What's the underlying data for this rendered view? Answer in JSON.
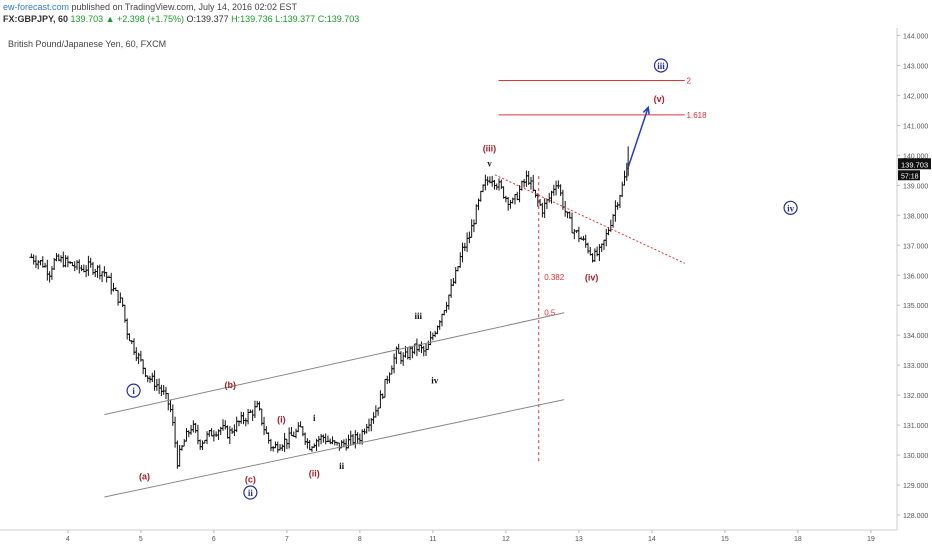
{
  "header": {
    "site": "ew-forecast.com",
    "published": " published on TradingView.com, July 14, 2016 02:02 EST",
    "symbol": "FX:GBPJPY, 60",
    "change": "139.703 ▲ +2.398 (+1.75%)",
    "open": " O:139.377",
    "high": " H:139.736",
    "low": " L:139.377",
    "close": " C:139.703"
  },
  "chart_data": {
    "type": "ohlc",
    "title": "British Pound/Japanese Yen, 60, FXCM",
    "last_price": "139.703",
    "countdown": "57:18",
    "ylim": [
      127.5,
      144.25
    ],
    "y_ticks": [
      "128.000",
      "129.000",
      "130.000",
      "131.000",
      "132.000",
      "133.000",
      "134.000",
      "135.000",
      "136.000",
      "137.000",
      "138.000",
      "139.000",
      "140.000",
      "141.000",
      "142.000",
      "143.000",
      "144.000"
    ],
    "x_ticks": [
      "4",
      "5",
      "6",
      "7",
      "8",
      "11",
      "12",
      "13",
      "14",
      "15",
      "18",
      "19"
    ],
    "colors": {
      "bars": "#111111",
      "channel": "#888888",
      "target_lines": "#e0333a",
      "fib_line": "#e0333a",
      "wave_red": "#a5202a",
      "wave_blue": "#1f2f9a",
      "projection_arrow": "#1f3fbb",
      "price_tag": "#111111"
    },
    "price_path": [
      [
        4,
        136.6
      ],
      [
        4.3,
        136.4
      ],
      [
        4.5,
        136.1
      ],
      [
        4.6,
        136.45
      ],
      [
        4.8,
        136.5
      ],
      [
        5.0,
        136.4
      ],
      [
        5.2,
        136.3
      ],
      [
        5.4,
        136.2
      ],
      [
        5.6,
        136.3
      ],
      [
        5.8,
        136.2
      ],
      [
        6.0,
        136.1
      ],
      [
        6.2,
        135.6
      ],
      [
        6.5,
        135.0
      ],
      [
        6.6,
        134.2
      ],
      [
        6.8,
        133.6
      ],
      [
        7.0,
        133.1
      ],
      [
        7.2,
        132.6
      ],
      [
        7.4,
        132.4
      ],
      [
        7.6,
        132.1
      ],
      [
        7.8,
        131.6
      ],
      [
        7.9,
        130.8
      ],
      [
        8.0,
        129.8
      ],
      [
        8.2,
        130.5
      ],
      [
        8.4,
        131.0
      ],
      [
        8.6,
        130.4
      ],
      [
        8.8,
        130.6
      ],
      [
        9.0,
        130.8
      ],
      [
        9.2,
        130.9
      ],
      [
        9.4,
        130.7
      ],
      [
        9.6,
        131.0
      ],
      [
        9.8,
        131.2
      ],
      [
        10.0,
        131.4
      ],
      [
        10.2,
        131.6
      ],
      [
        10.4,
        130.8
      ],
      [
        10.6,
        130.2
      ],
      [
        10.8,
        130.4
      ],
      [
        11.0,
        130.5
      ],
      [
        11.2,
        130.7
      ],
      [
        11.4,
        130.9
      ],
      [
        11.6,
        130.3
      ],
      [
        11.8,
        130.5
      ],
      [
        12.0,
        130.6
      ],
      [
        12.2,
        130.4
      ],
      [
        12.4,
        130.3
      ],
      [
        12.6,
        130.4
      ],
      [
        12.8,
        130.5
      ],
      [
        13.0,
        130.6
      ],
      [
        13.2,
        131.1
      ],
      [
        13.4,
        131.4
      ],
      [
        13.6,
        132.0
      ],
      [
        13.8,
        132.8
      ],
      [
        14.0,
        133.4
      ],
      [
        14.2,
        133.2
      ],
      [
        14.4,
        133.5
      ],
      [
        14.6,
        133.6
      ],
      [
        14.8,
        133.4
      ],
      [
        15.0,
        134.0
      ],
      [
        15.2,
        134.6
      ],
      [
        15.4,
        135.2
      ],
      [
        15.6,
        135.9
      ],
      [
        15.8,
        136.8
      ],
      [
        16.0,
        137.3
      ],
      [
        16.2,
        138.2
      ],
      [
        16.4,
        139.0
      ],
      [
        16.6,
        139.3
      ],
      [
        16.8,
        139.0
      ],
      [
        17.0,
        138.6
      ],
      [
        17.2,
        138.4
      ],
      [
        17.4,
        138.9
      ],
      [
        17.6,
        139.3
      ],
      [
        17.8,
        138.6
      ],
      [
        18.0,
        138.2
      ],
      [
        18.2,
        138.6
      ],
      [
        18.4,
        139.2
      ],
      [
        18.6,
        138.2
      ],
      [
        18.8,
        137.6
      ],
      [
        19.0,
        137.3
      ],
      [
        19.2,
        137.0
      ],
      [
        19.4,
        136.6
      ],
      [
        19.6,
        136.8
      ],
      [
        19.8,
        137.5
      ],
      [
        20.0,
        138.3
      ],
      [
        20.2,
        139.0
      ],
      [
        20.35,
        139.7
      ]
    ],
    "lines": {
      "channel_upper": [
        [
          6.0,
          131.35
        ],
        [
          18.6,
          134.75
        ]
      ],
      "channel_lower": [
        [
          6.0,
          128.6
        ],
        [
          18.6,
          131.85
        ]
      ],
      "fib_vertical_x": 17.9,
      "fib_vertical_range": [
        129.8,
        139.4
      ],
      "red_dotted": [
        [
          16.7,
          139.35
        ],
        [
          21.9,
          136.4
        ]
      ],
      "target_1618": {
        "y": 141.35,
        "x": [
          16.8,
          21.9
        ]
      },
      "target_2": {
        "y": 142.5,
        "x": [
          16.8,
          21.9
        ]
      },
      "projection_arrow": [
        [
          20.35,
          139.6
        ],
        [
          20.9,
          141.6
        ]
      ]
    },
    "annotations": [
      {
        "text": "1.618",
        "x": 21.95,
        "y": 141.35,
        "style": "fib-label"
      },
      {
        "text": "2",
        "x": 21.95,
        "y": 142.5,
        "style": "fib-label"
      },
      {
        "text": "0.382",
        "x": 18.05,
        "y": 135.95,
        "style": "fib-label"
      },
      {
        "text": "0.5",
        "x": 18.05,
        "y": 134.75,
        "style": "fib-label"
      },
      {
        "text": "i",
        "x": 6.8,
        "y": 132.15,
        "style": "blue-circle"
      },
      {
        "text": "ii",
        "x": 10.0,
        "y": 128.75,
        "style": "blue-circle"
      },
      {
        "text": "iii",
        "x": 21.25,
        "y": 143.0,
        "style": "blue-circle"
      },
      {
        "text": "iv",
        "x": 24.8,
        "y": 138.25,
        "style": "blue-circle"
      },
      {
        "text": "(a)",
        "x": 7.1,
        "y": 129.3,
        "style": "red"
      },
      {
        "text": "(b)",
        "x": 9.45,
        "y": 132.35,
        "style": "red"
      },
      {
        "text": "(c)",
        "x": 10.0,
        "y": 129.2,
        "style": "red"
      },
      {
        "text": "(i)",
        "x": 10.85,
        "y": 131.2,
        "style": "red"
      },
      {
        "text": "(ii)",
        "x": 11.75,
        "y": 129.4,
        "style": "red"
      },
      {
        "text": "(iii)",
        "x": 16.55,
        "y": 140.25,
        "style": "red"
      },
      {
        "text": "(iv)",
        "x": 19.35,
        "y": 135.95,
        "style": "red"
      },
      {
        "text": "(v)",
        "x": 21.2,
        "y": 141.9,
        "style": "red"
      },
      {
        "text": "i",
        "x": 11.75,
        "y": 131.25,
        "style": "black"
      },
      {
        "text": "ii",
        "x": 12.5,
        "y": 129.65,
        "style": "black"
      },
      {
        "text": "iii",
        "x": 14.6,
        "y": 134.65,
        "style": "black"
      },
      {
        "text": "iv",
        "x": 15.05,
        "y": 132.5,
        "style": "black"
      },
      {
        "text": "v",
        "x": 16.55,
        "y": 139.75,
        "style": "black"
      }
    ]
  }
}
